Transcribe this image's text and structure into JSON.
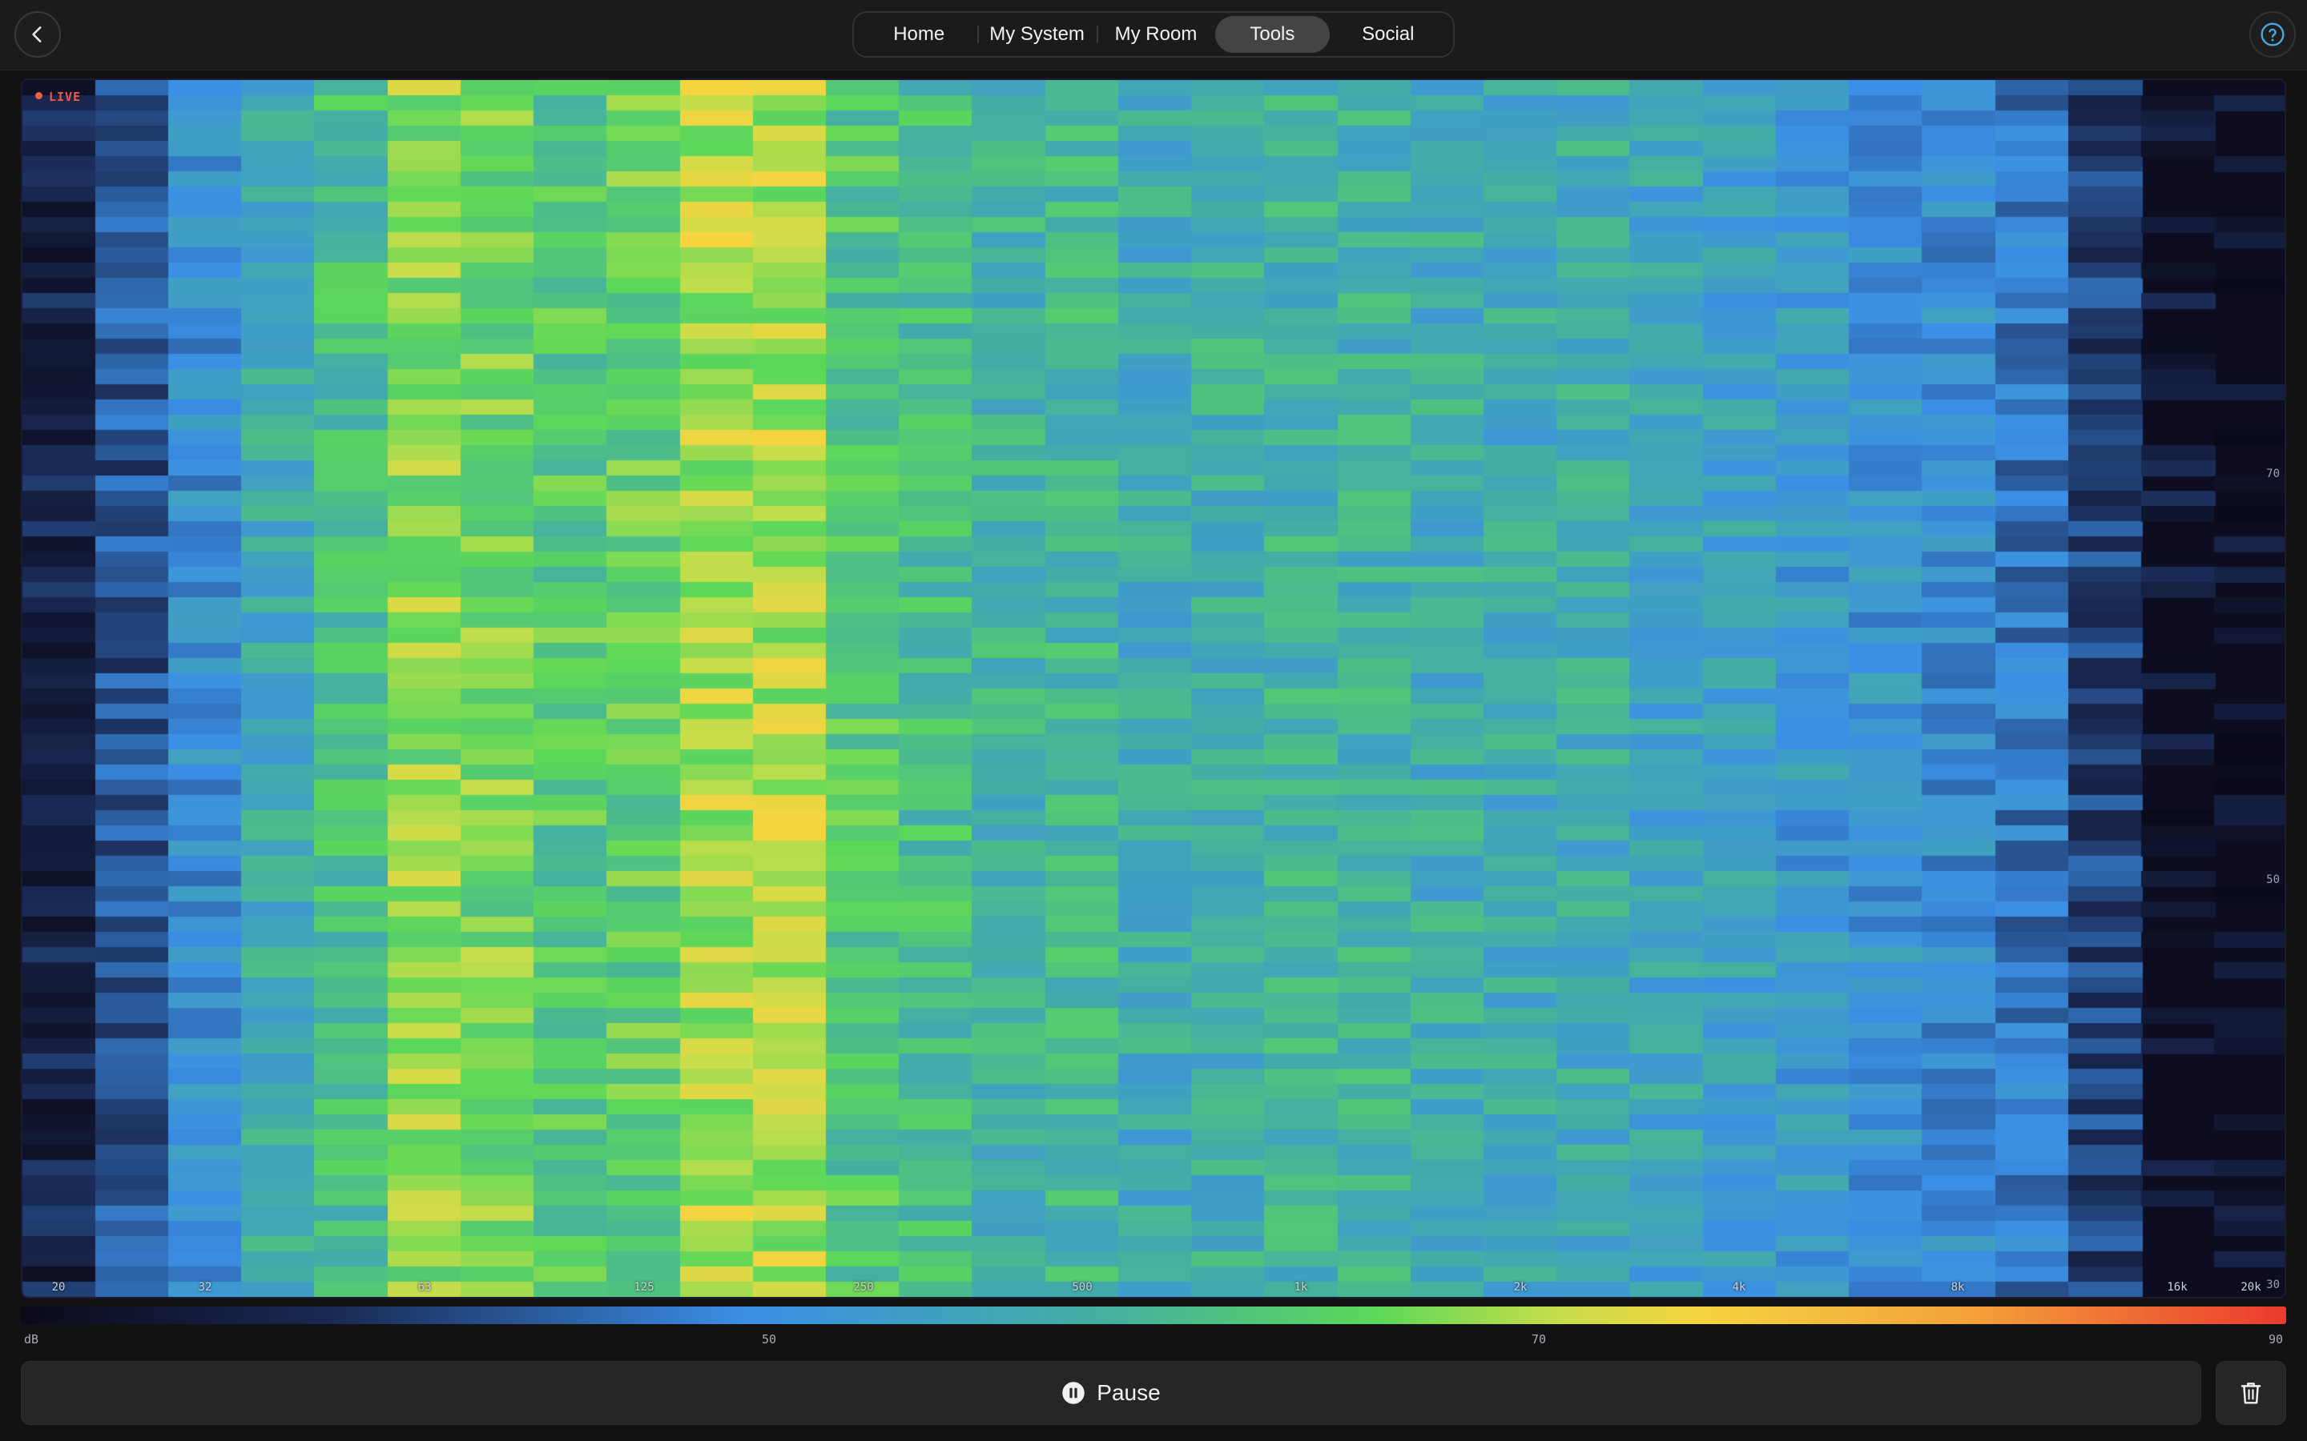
{
  "header": {
    "back_icon": "chevron-left-icon",
    "help_icon": "question-circle-icon",
    "tabs": [
      {
        "label": "Home",
        "active": false
      },
      {
        "label": "My System",
        "active": false
      },
      {
        "label": "My Room",
        "active": false
      },
      {
        "label": "Tools",
        "active": true
      },
      {
        "label": "Social",
        "active": false
      }
    ]
  },
  "spectrogram": {
    "status": "LIVE",
    "status_color": "#ef5a4a",
    "frequency_labels": [
      "20",
      "32",
      "63",
      "125",
      "250",
      "500",
      "1k",
      "2k",
      "4k",
      "8k",
      "16k",
      "20k"
    ],
    "db_axis_labels": [
      "70",
      "50",
      "30"
    ]
  },
  "color_scale": {
    "unit": "dB",
    "labels": [
      "50",
      "70",
      "90"
    ],
    "colors": [
      "#0b0a1a",
      "#1a2a55",
      "#3b8fe6",
      "#45b0a0",
      "#5ed858",
      "#c8dd4a",
      "#f5d440",
      "#f3a23a",
      "#ec3a2e"
    ]
  },
  "controls": {
    "pause_label": "Pause",
    "pause_icon": "pause-circle-icon",
    "trash_icon": "trash-icon"
  }
}
